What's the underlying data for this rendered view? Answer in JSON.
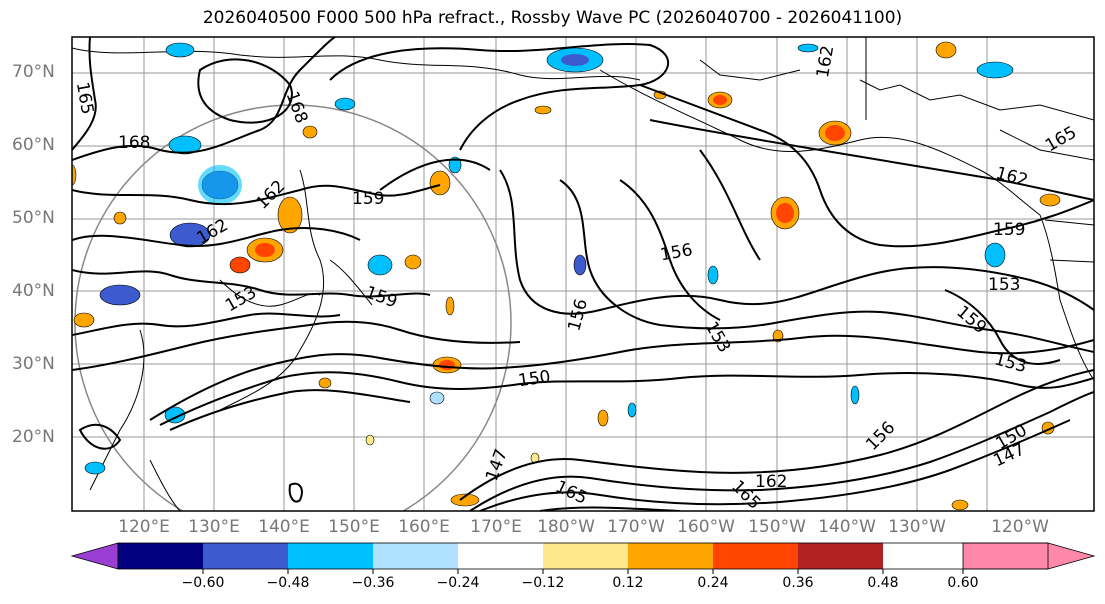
{
  "title": "2026040500 F000 500 hPa refract., Rossby Wave PC (2026040700 - 2026041100)",
  "lat_labels": [
    "70°N",
    "60°N",
    "50°N",
    "40°N",
    "30°N",
    "20°N"
  ],
  "lon_labels": [
    "120°E",
    "130°E",
    "140°E",
    "150°E",
    "160°E",
    "170°E",
    "180°W",
    "170°W",
    "160°W",
    "150°W",
    "140°W",
    "130°W",
    "120°W"
  ],
  "contour_labels": [
    "165",
    "168",
    "168",
    "162",
    "159",
    "162",
    "162",
    "165",
    "159",
    "162",
    "156",
    "153",
    "159",
    "153",
    "150",
    "156",
    "153",
    "156",
    "150",
    "147",
    "153",
    "147",
    "165",
    "162",
    "165",
    "159"
  ],
  "colorbar": {
    "ticks": [
      "−0.60",
      "−0.48",
      "−0.36",
      "−0.24",
      "−0.12",
      "0.12",
      "0.24",
      "0.36",
      "0.48",
      "0.60"
    ],
    "colors": [
      "#9b3fd4",
      "#000080",
      "#3b5bcf",
      "#00bfff",
      "#b0e0ff",
      "#ffffff",
      "#ffe98a",
      "#ffa500",
      "#ff4500",
      "#b22222",
      "#ff88aa"
    ]
  }
}
